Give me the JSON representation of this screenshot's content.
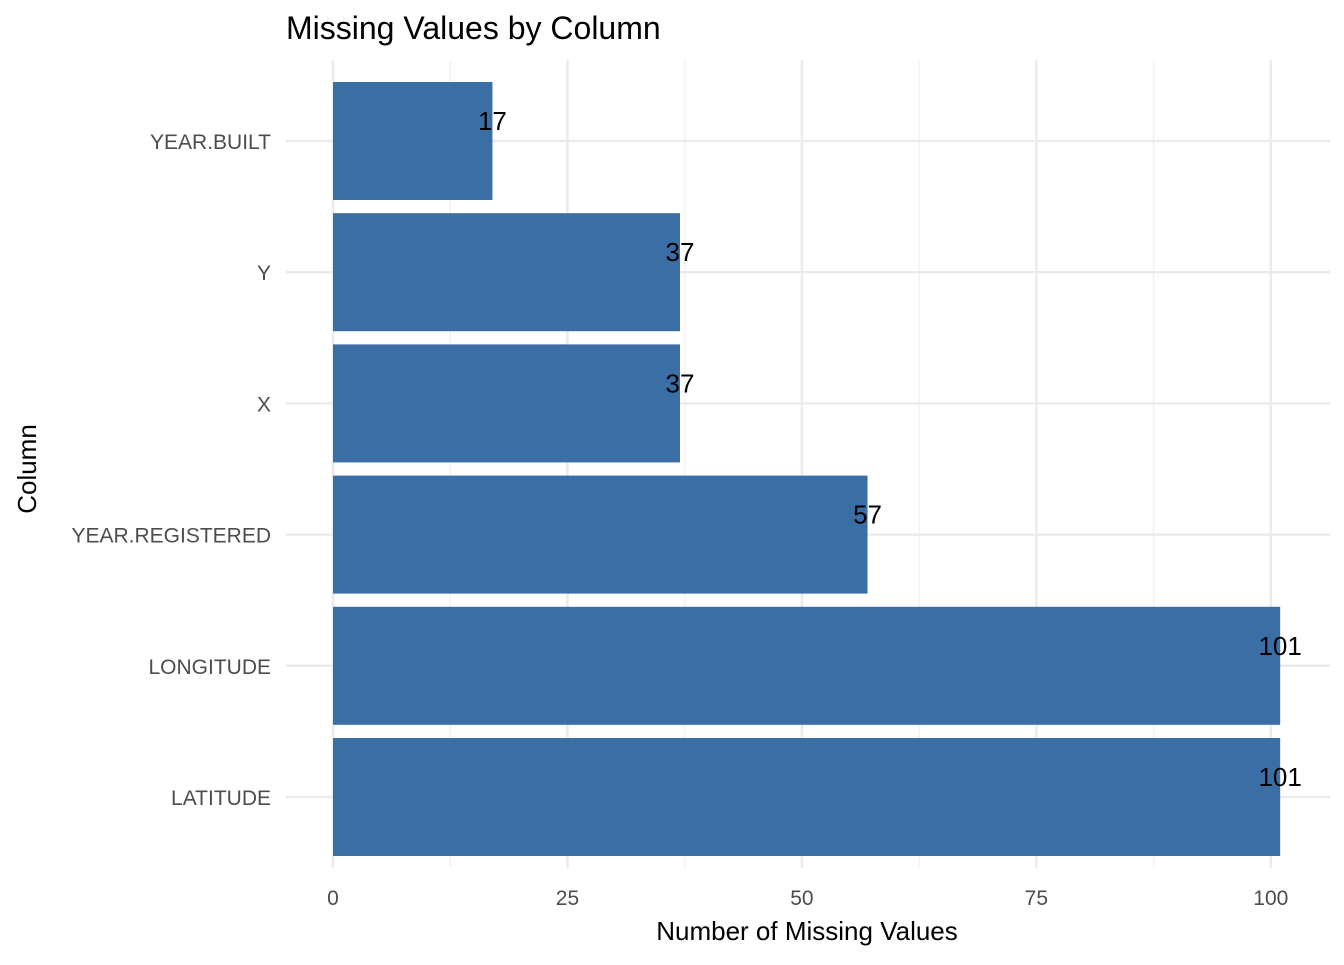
{
  "chart_data": {
    "type": "bar",
    "orientation": "horizontal",
    "title": "Missing Values by Column",
    "xlabel": "Number of Missing Values",
    "ylabel": "Column",
    "categories": [
      "YEAR.BUILT",
      "Y",
      "X",
      "YEAR.REGISTERED",
      "LONGITUDE",
      "LATITUDE"
    ],
    "values": [
      17,
      37,
      37,
      57,
      101,
      101
    ],
    "data_labels": [
      "17",
      "37",
      "37",
      "57",
      "101",
      "101"
    ],
    "x_ticks": [
      0,
      25,
      50,
      75,
      100
    ],
    "x_tick_labels": [
      "0",
      "25",
      "50",
      "75",
      "100"
    ],
    "xlim": [
      0,
      106.1
    ],
    "grid": true,
    "legend": "none",
    "colors": {
      "bar": "#3a6ea5",
      "grid_major": "#ebebeb",
      "grid_minor": "#f2f2f2",
      "tick_text": "#4d4d4d",
      "text": "#000000"
    }
  }
}
